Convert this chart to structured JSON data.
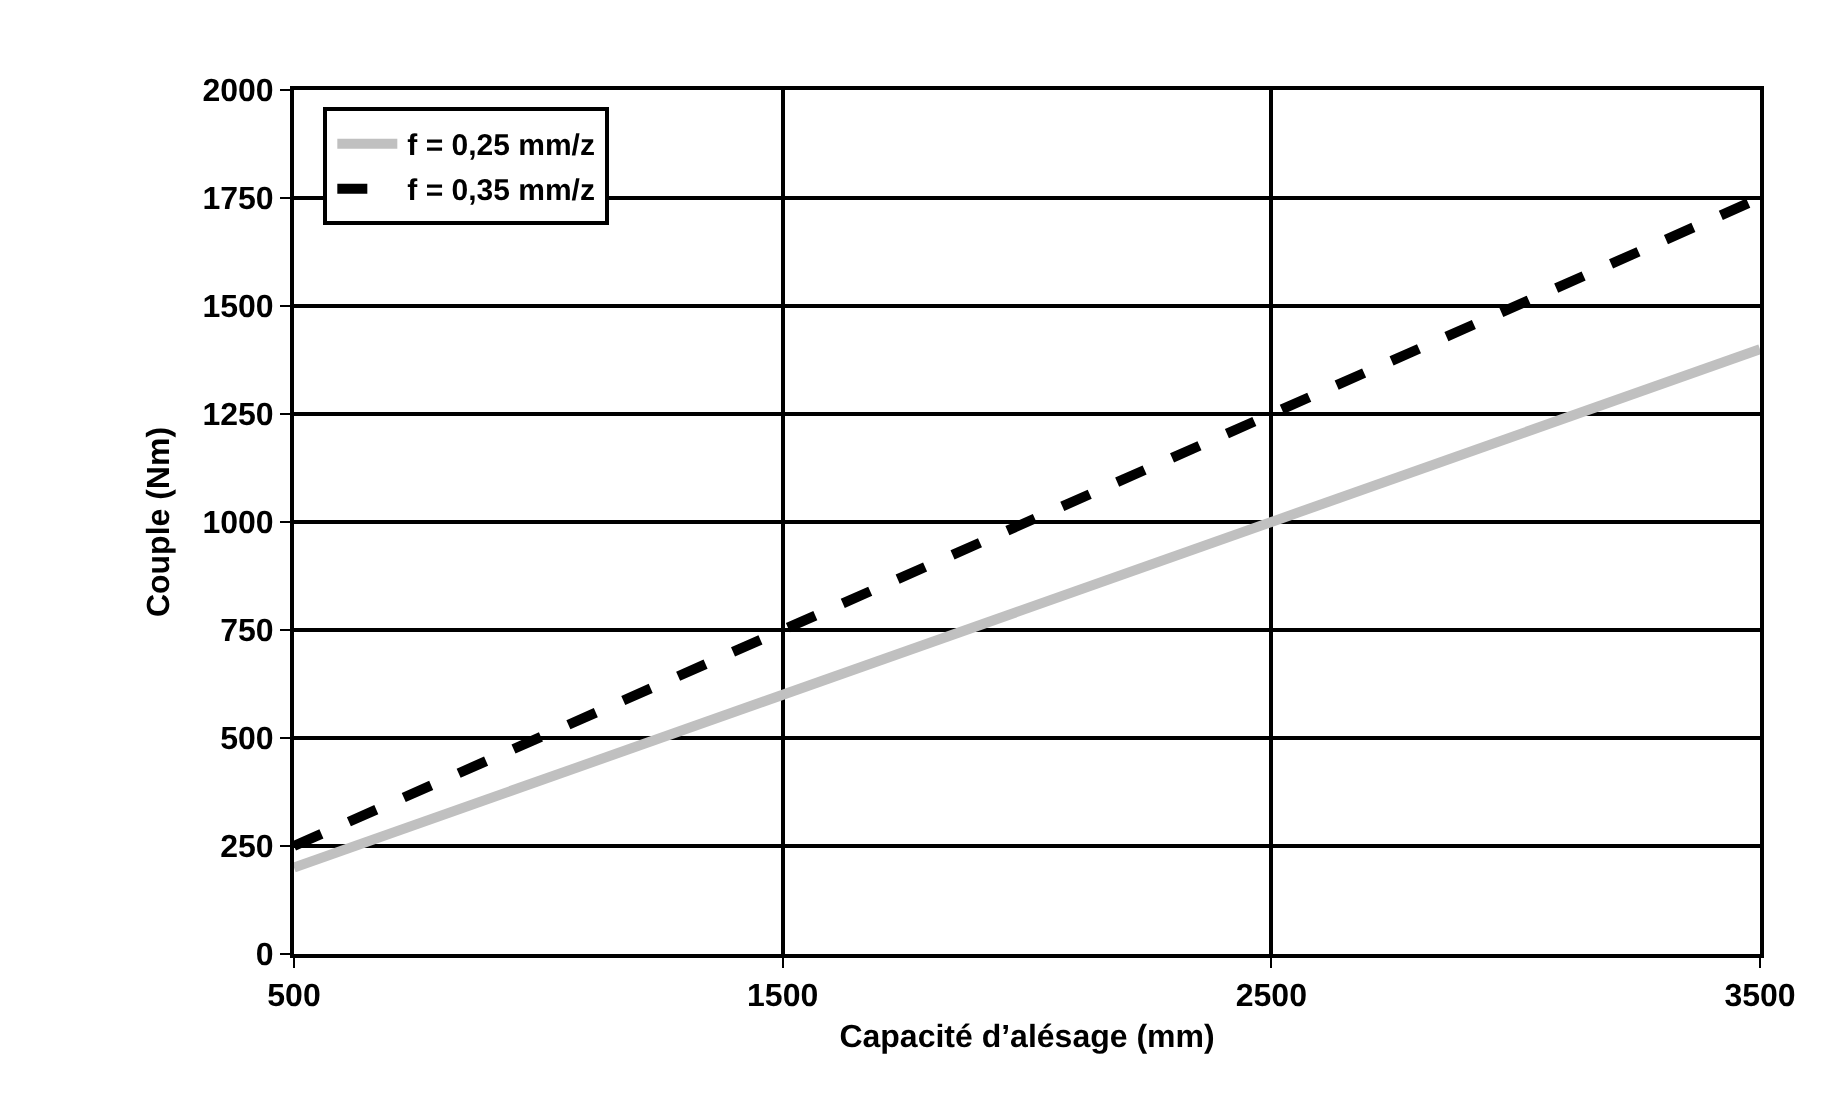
{
  "chart_data": {
    "type": "line",
    "xlabel": "Capacité d’alésage (mm)",
    "ylabel": "Couple (Nm)",
    "x": [
      500,
      3500
    ],
    "series": [
      {
        "name": "f = 0,25 mm/z",
        "color": "#c0c0c0",
        "values": [
          200,
          1400
        ],
        "line_style": "solid"
      },
      {
        "name": "f = 0,35 mm/z",
        "color": "#000000",
        "values": [
          250,
          1750
        ],
        "line_style": "dashed"
      }
    ],
    "xlim": [
      500,
      3500
    ],
    "xticks": [
      500,
      1500,
      2500,
      3500
    ],
    "ylim": [
      0,
      2000
    ],
    "yticks": [
      0,
      250,
      500,
      750,
      1000,
      1250,
      1500,
      1750,
      2000
    ],
    "grid": true,
    "legend": "top left",
    "marker": "none"
  }
}
